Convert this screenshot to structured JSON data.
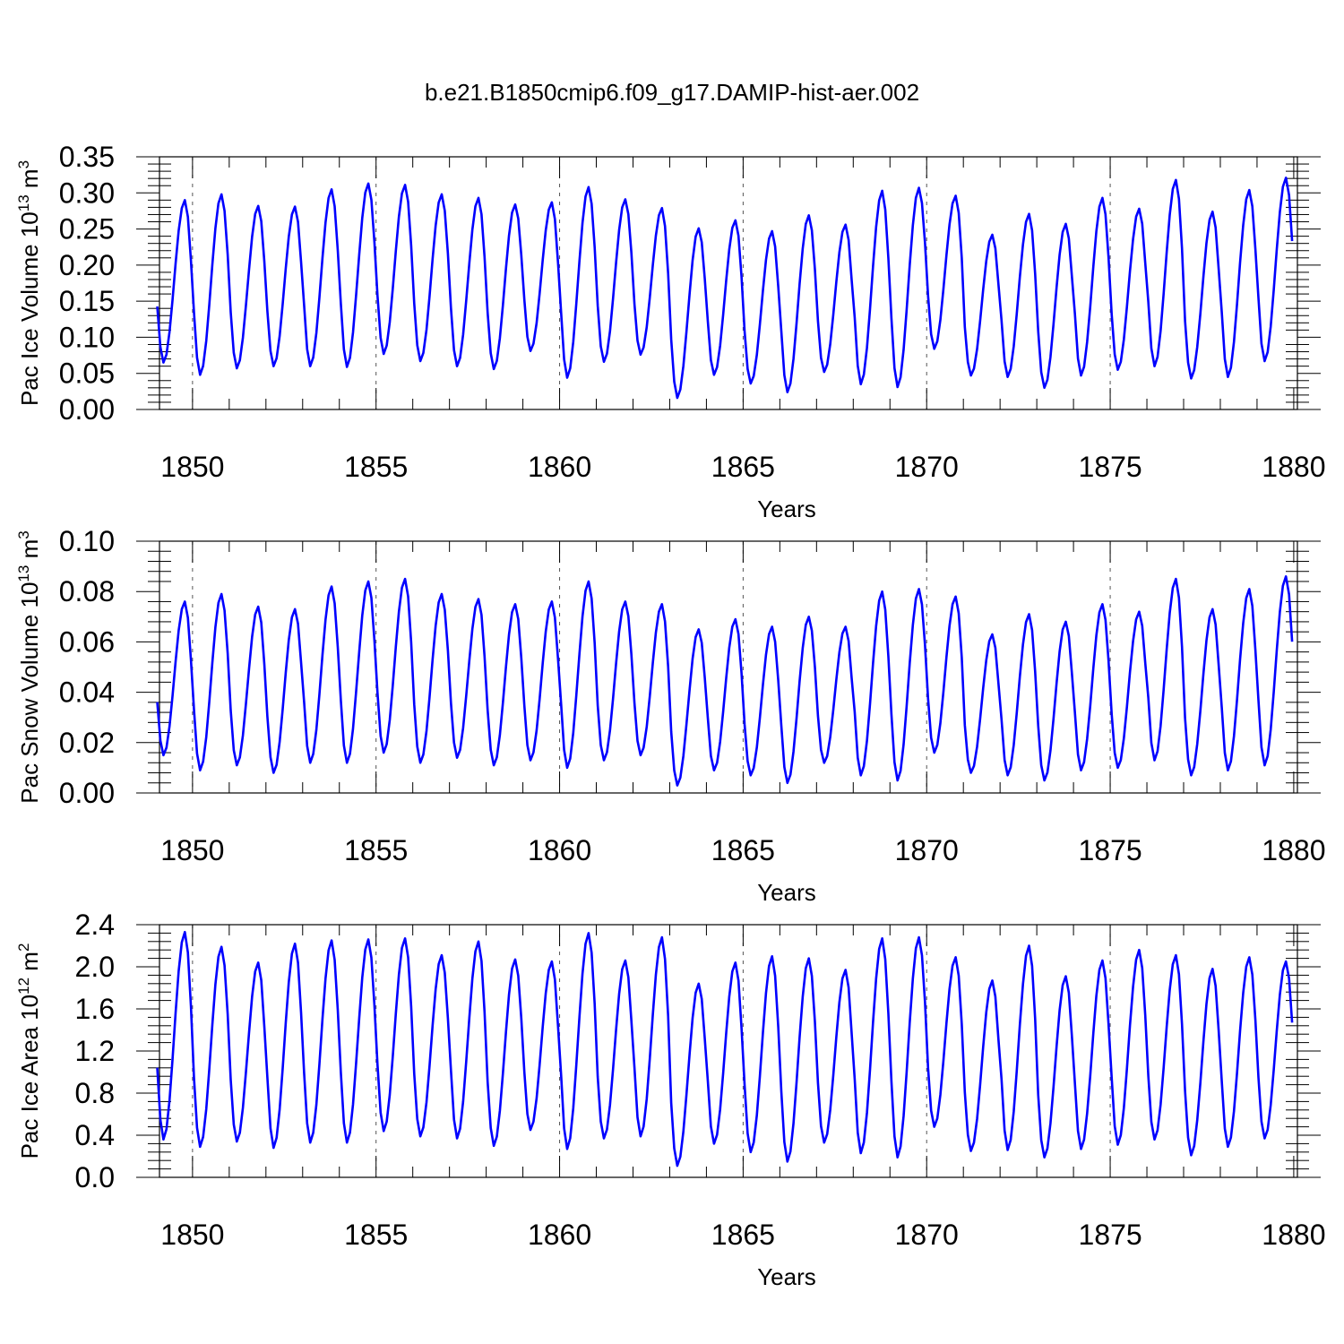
{
  "title": "b.e21.B1850cmip6.f09_g17.DAMIP-hist-aer.002",
  "colors": {
    "series": "#0000ff",
    "axes": "#000000",
    "reference_lines": "#555555"
  },
  "chart_data": [
    {
      "type": "line",
      "name": "pac-ice-volume",
      "title": "b.e21.B1850cmip6.f09_g17.DAMIP-hist-aer.002",
      "xlabel": "Years",
      "ylabel": {
        "main": "Pac Ice Volume 10",
        "exp": "13",
        "unit": " m",
        "unit_exp": "3"
      },
      "xlim": [
        1849.1,
        1880.1
      ],
      "ylim": [
        0.0,
        0.35
      ],
      "xticks": [
        1850,
        1855,
        1860,
        1865,
        1870,
        1875,
        1880
      ],
      "xtick_labels": [
        "1850",
        "1855",
        "1860",
        "1865",
        "1870",
        "1875",
        "1880"
      ],
      "yticks": [
        0.0,
        0.05,
        0.1,
        0.15,
        0.2,
        0.25,
        0.3,
        0.35
      ],
      "ytick_labels": [
        "0.00",
        "0.05",
        "0.10",
        "0.15",
        "0.20",
        "0.25",
        "0.30",
        "0.35"
      ],
      "ref_lines_x": [
        1850,
        1855,
        1860,
        1865,
        1870,
        1875
      ],
      "start": 1849.04,
      "step": 0.08333,
      "annual": {
        "min": [
          0.065,
          0.048,
          0.057,
          0.06,
          0.06,
          0.059,
          0.077,
          0.067,
          0.06,
          0.056,
          0.081,
          0.044,
          0.066,
          0.076,
          0.016,
          0.048,
          0.036,
          0.024,
          0.052,
          0.035,
          0.031,
          0.084,
          0.047,
          0.045,
          0.03,
          0.047,
          0.055,
          0.06,
          0.043,
          0.045,
          0.067
        ],
        "max": [
          0.29,
          0.298,
          0.282,
          0.281,
          0.305,
          0.313,
          0.311,
          0.298,
          0.293,
          0.284,
          0.287,
          0.308,
          0.291,
          0.279,
          0.251,
          0.262,
          0.247,
          0.269,
          0.256,
          0.303,
          0.307,
          0.296,
          0.242,
          0.271,
          0.257,
          0.293,
          0.278,
          0.318,
          0.274,
          0.304,
          0.321
        ]
      },
      "series": [
        {
          "values": []
        }
      ]
    },
    {
      "type": "line",
      "name": "pac-snow-volume",
      "xlabel": "Years",
      "ylabel": {
        "main": "Pac Snow Volume 10",
        "exp": "13",
        "unit": " m",
        "unit_exp": "3"
      },
      "xlim": [
        1849.1,
        1880.1
      ],
      "ylim": [
        0.0,
        0.1
      ],
      "xticks": [
        1850,
        1855,
        1860,
        1865,
        1870,
        1875,
        1880
      ],
      "xtick_labels": [
        "1850",
        "1855",
        "1860",
        "1865",
        "1870",
        "1875",
        "1880"
      ],
      "yticks": [
        0.0,
        0.02,
        0.04,
        0.06,
        0.08,
        0.1
      ],
      "ytick_labels": [
        "0.00",
        "0.02",
        "0.04",
        "0.06",
        "0.08",
        "0.10"
      ],
      "ref_lines_x": [
        1850,
        1855,
        1860,
        1865,
        1870,
        1875
      ],
      "start": 1849.04,
      "step": 0.08333,
      "annual": {
        "min": [
          0.015,
          0.009,
          0.011,
          0.008,
          0.012,
          0.012,
          0.016,
          0.012,
          0.014,
          0.011,
          0.013,
          0.01,
          0.013,
          0.015,
          0.003,
          0.009,
          0.007,
          0.004,
          0.012,
          0.007,
          0.005,
          0.016,
          0.008,
          0.007,
          0.005,
          0.009,
          0.01,
          0.013,
          0.007,
          0.009,
          0.011
        ],
        "max": [
          0.076,
          0.079,
          0.074,
          0.073,
          0.082,
          0.084,
          0.085,
          0.079,
          0.077,
          0.075,
          0.076,
          0.084,
          0.076,
          0.075,
          0.065,
          0.069,
          0.066,
          0.07,
          0.066,
          0.08,
          0.081,
          0.078,
          0.063,
          0.071,
          0.068,
          0.075,
          0.072,
          0.085,
          0.073,
          0.081,
          0.086
        ]
      },
      "series": [
        {
          "values": []
        }
      ]
    },
    {
      "type": "line",
      "name": "pac-ice-area",
      "xlabel": "Years",
      "ylabel": {
        "main": "Pac Ice Area 10",
        "exp": "12",
        "unit": " m",
        "unit_exp": "2"
      },
      "xlim": [
        1849.1,
        1880.1
      ],
      "ylim": [
        0.0,
        2.4
      ],
      "xticks": [
        1850,
        1855,
        1860,
        1865,
        1870,
        1875,
        1880
      ],
      "xtick_labels": [
        "1850",
        "1855",
        "1860",
        "1865",
        "1870",
        "1875",
        "1880"
      ],
      "yticks": [
        0.0,
        0.4,
        0.8,
        1.2,
        1.6,
        2.0,
        2.4
      ],
      "ytick_labels": [
        "0.0",
        "0.4",
        "0.8",
        "1.2",
        "1.6",
        "2.0",
        "2.4"
      ],
      "ref_lines_x": [
        1850,
        1855,
        1860,
        1865,
        1870,
        1875
      ],
      "start": 1849.04,
      "step": 0.08333,
      "annual": {
        "min": [
          0.36,
          0.29,
          0.34,
          0.28,
          0.33,
          0.33,
          0.44,
          0.39,
          0.37,
          0.3,
          0.45,
          0.27,
          0.37,
          0.39,
          0.11,
          0.32,
          0.24,
          0.15,
          0.33,
          0.23,
          0.19,
          0.48,
          0.25,
          0.26,
          0.19,
          0.27,
          0.31,
          0.36,
          0.21,
          0.29,
          0.37
        ],
        "max": [
          2.33,
          2.19,
          2.04,
          2.22,
          2.25,
          2.26,
          2.27,
          2.11,
          2.24,
          2.07,
          2.05,
          2.32,
          2.06,
          2.28,
          1.84,
          2.04,
          2.1,
          2.08,
          1.97,
          2.27,
          2.28,
          2.09,
          1.87,
          2.2,
          1.91,
          2.06,
          2.16,
          2.11,
          1.98,
          2.09,
          2.05
        ]
      },
      "series": [
        {
          "values": []
        }
      ]
    }
  ]
}
